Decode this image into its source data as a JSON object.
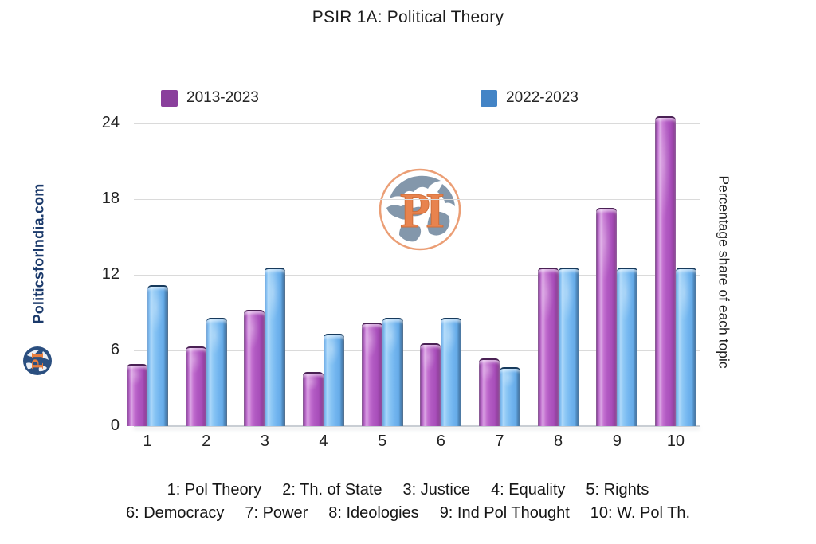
{
  "title": "PSIR 1A: Political Theory",
  "legend": [
    {
      "label": "2013-2023",
      "color": "#8a3f9c"
    },
    {
      "label": "2022-2023",
      "color": "#4384c6"
    }
  ],
  "watermark": {
    "site": "PoliticsforIndia.com",
    "logo_text": "PI"
  },
  "right_axis_label": "Percentage share of each topic",
  "chart_data": {
    "type": "bar",
    "categories": [
      "1",
      "2",
      "3",
      "4",
      "5",
      "6",
      "7",
      "8",
      "9",
      "10"
    ],
    "series": [
      {
        "name": "2013-2023",
        "color": "#8a3f9c",
        "values": [
          4.9,
          6.3,
          9.2,
          4.3,
          8.2,
          6.6,
          5.4,
          12.6,
          17.3,
          24.6
        ]
      },
      {
        "name": "2022-2023",
        "color": "#4384c6",
        "values": [
          11.2,
          8.6,
          12.6,
          7.3,
          8.6,
          8.6,
          4.7,
          12.6,
          12.6,
          12.6
        ]
      }
    ],
    "title": "PSIR 1A: Political Theory",
    "xlabel": "",
    "ylabel": "Percentage share of each topic",
    "ylim": [
      0,
      24
    ],
    "yticks": [
      0,
      6,
      12,
      18,
      24
    ],
    "grid": true,
    "legend_position": "top"
  },
  "footnotes": {
    "line1": [
      "1: Pol Theory",
      "2: Th. of State",
      "3: Justice",
      "4: Equality",
      "5: Rights"
    ],
    "line2": [
      "6: Democracy",
      "7: Power",
      "8: Ideologies",
      "9: Ind Pol Thought",
      "10: W. Pol Th."
    ]
  }
}
